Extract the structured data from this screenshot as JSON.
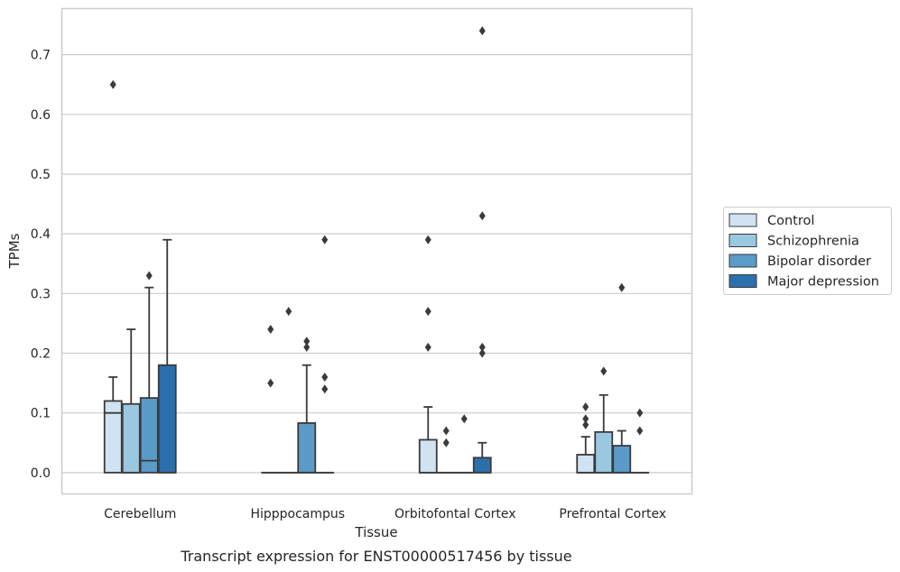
{
  "caption": "Transcript expression for ENST00000517456 by tissue",
  "chart_data": {
    "type": "box",
    "xlabel": "Tissue",
    "ylabel": "TPMs",
    "ylim": [
      -0.035,
      0.778
    ],
    "yticks": [
      "0.0",
      "0.1",
      "0.2",
      "0.3",
      "0.4",
      "0.5",
      "0.6",
      "0.7"
    ],
    "ytick_values": [
      0,
      0.1,
      0.2,
      0.3,
      0.4,
      0.5,
      0.6,
      0.7
    ],
    "grid": true,
    "legend_position": "right",
    "categories": [
      "Cerebellum",
      "Hipppocampus",
      "Orbitofontal Cortex",
      "Prefrontal Cortex"
    ],
    "series": [
      {
        "name": "Control",
        "color": "#d1e2f2",
        "boxes": [
          {
            "q1": 0,
            "median": 0.1,
            "q3": 0.12,
            "whisker_low": 0,
            "whisker_high": 0.16,
            "outliers": [
              0.65
            ]
          },
          {
            "q1": 0,
            "median": 0,
            "q3": 0,
            "whisker_low": 0,
            "whisker_high": 0,
            "outliers": [
              0.15,
              0.24
            ]
          },
          {
            "q1": 0,
            "median": 0,
            "q3": 0.055,
            "whisker_low": 0,
            "whisker_high": 0.11,
            "outliers": [
              0.21,
              0.27,
              0.39
            ]
          },
          {
            "q1": 0,
            "median": 0,
            "q3": 0.03,
            "whisker_low": 0,
            "whisker_high": 0.06,
            "outliers": [
              0.08,
              0.09,
              0.11
            ]
          }
        ]
      },
      {
        "name": "Schizophrenia",
        "color": "#9ac8e0",
        "boxes": [
          {
            "q1": 0,
            "median": 0,
            "q3": 0.115,
            "whisker_low": 0,
            "whisker_high": 0.24,
            "outliers": []
          },
          {
            "q1": 0,
            "median": 0,
            "q3": 0,
            "whisker_low": 0,
            "whisker_high": 0,
            "outliers": [
              0.27
            ]
          },
          {
            "q1": 0,
            "median": 0,
            "q3": 0,
            "whisker_low": 0,
            "whisker_high": 0,
            "outliers": [
              0.05,
              0.07
            ]
          },
          {
            "q1": 0,
            "median": 0,
            "q3": 0.068,
            "whisker_low": 0,
            "whisker_high": 0.13,
            "outliers": [
              0.17
            ]
          }
        ]
      },
      {
        "name": "Bipolar disorder",
        "color": "#5a9bc8",
        "boxes": [
          {
            "q1": 0,
            "median": 0.02,
            "q3": 0.125,
            "whisker_low": 0,
            "whisker_high": 0.31,
            "outliers": [
              0.33
            ]
          },
          {
            "q1": 0,
            "median": 0,
            "q3": 0.083,
            "whisker_low": 0,
            "whisker_high": 0.18,
            "outliers": [
              0.21,
              0.22
            ]
          },
          {
            "q1": 0,
            "median": 0,
            "q3": 0,
            "whisker_low": 0,
            "whisker_high": 0,
            "outliers": [
              0.09
            ]
          },
          {
            "q1": 0,
            "median": 0,
            "q3": 0.045,
            "whisker_low": 0,
            "whisker_high": 0.07,
            "outliers": [
              0.31
            ]
          }
        ]
      },
      {
        "name": "Major depression",
        "color": "#2b6fad",
        "boxes": [
          {
            "q1": 0,
            "median": 0,
            "q3": 0.18,
            "whisker_low": 0,
            "whisker_high": 0.39,
            "outliers": []
          },
          {
            "q1": 0,
            "median": 0,
            "q3": 0,
            "whisker_low": 0,
            "whisker_high": 0,
            "outliers": [
              0.14,
              0.16,
              0.39
            ]
          },
          {
            "q1": 0,
            "median": 0,
            "q3": 0.025,
            "whisker_low": 0,
            "whisker_high": 0.05,
            "outliers": [
              0.2,
              0.21,
              0.43,
              0.74
            ]
          },
          {
            "q1": 0,
            "median": 0,
            "q3": 0,
            "whisker_low": 0,
            "whisker_high": 0,
            "outliers": [
              0.07,
              0.1
            ]
          }
        ]
      }
    ]
  }
}
